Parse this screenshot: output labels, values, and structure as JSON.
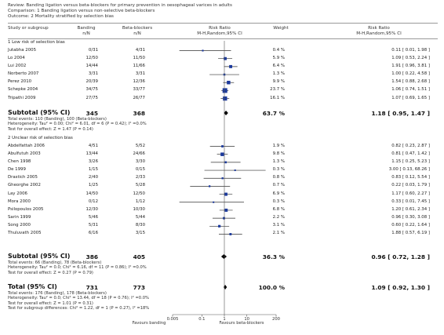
{
  "review": {
    "review": "Review:  Banding ligation versus beta-blockers for primary prevention in oesophageal varices in adults",
    "comparison": "Comparison:  1 Banding ligation versus non-selective beta-blockers",
    "outcome": "Outcome:  2 Mortality stratified by selection bias"
  },
  "columns": {
    "study": "Study or subgroup",
    "banding": "Banding",
    "banding_sub": "n/N",
    "bb": "Beta-blockers",
    "bb_sub": "n/N",
    "rr": "Risk Ratio",
    "rr_sub": "M-H,Random,95% CI",
    "weight": "Weight",
    "rr2": "Risk Ratio",
    "rr2_sub": "M-H,Random,95% CI"
  },
  "footer": {
    "favours_left": "Favours banding",
    "favours_right": "Favours beta-blockers"
  },
  "chart_data": {
    "type": "forest",
    "x_scale": "log",
    "xlim": [
      0.005,
      200
    ],
    "x_ticks": [
      "0.005",
      "0.1",
      "1",
      "10",
      "200"
    ],
    "x_tick_values": [
      0.005,
      0.1,
      1,
      10,
      200
    ],
    "subgroups": [
      {
        "title": "1 Low risk of selection bias",
        "studies": [
          {
            "name": "Jutabha 2005",
            "banding": "0/31",
            "bb": "4/31",
            "weight": "0.4 %",
            "ci_text": "0.11 [ 0.01, 1.98 ]",
            "rr": 0.11,
            "lo": 0.01,
            "hi": 1.98
          },
          {
            "name": "Lo 2004",
            "banding": "12/50",
            "bb": "11/50",
            "weight": "5.9 %",
            "ci_text": "1.09 [ 0.53, 2.24 ]",
            "rr": 1.09,
            "lo": 0.53,
            "hi": 2.24
          },
          {
            "name": "Lui 2002",
            "banding": "14/44",
            "bb": "11/66",
            "weight": "6.4 %",
            "ci_text": "1.91 [ 0.96, 3.81 ]",
            "rr": 1.91,
            "lo": 0.96,
            "hi": 3.81
          },
          {
            "name": "Norberto 2007",
            "banding": "3/31",
            "bb": "3/31",
            "weight": "1.3 %",
            "ci_text": "1.00 [ 0.22, 4.58 ]",
            "rr": 1.0,
            "lo": 0.22,
            "hi": 4.58
          },
          {
            "name": "Perez 2010",
            "banding": "20/39",
            "bb": "12/36",
            "weight": "9.9 %",
            "ci_text": "1.54 [ 0.88, 2.68 ]",
            "rr": 1.54,
            "lo": 0.88,
            "hi": 2.68
          },
          {
            "name": "Schepke 2004",
            "banding": "34/75",
            "bb": "33/77",
            "weight": "23.7 %",
            "ci_text": "1.06 [ 0.74, 1.51 ]",
            "rr": 1.06,
            "lo": 0.74,
            "hi": 1.51
          },
          {
            "name": "Tripathi 2009",
            "banding": "27/75",
            "bb": "26/77",
            "weight": "16.1 %",
            "ci_text": "1.07 [ 0.69, 1.65 ]",
            "rr": 1.07,
            "lo": 0.69,
            "hi": 1.65
          }
        ],
        "subtotal": {
          "label": "Subtotal (95% CI)",
          "banding": "345",
          "bb": "368",
          "weight": "63.7 %",
          "ci_text": "1.18 [ 0.95, 1.47 ]",
          "rr": 1.18,
          "lo": 0.95,
          "hi": 1.47
        },
        "notes": [
          "Total events: 110 (Banding), 100 (Beta-blockers)",
          "Heterogeneity: Tau² = 0.00; Chi² = 6.01, df = 6 (P = 0.42); I² =0.0%",
          "Test for overall effect: Z = 1.47 (P = 0.14)"
        ]
      },
      {
        "title": "2 Unclear risk of selection bias",
        "studies": [
          {
            "name": "Abdelfattah 2006",
            "banding": "4/51",
            "bb": "5/52",
            "weight": "1.9 %",
            "ci_text": "0.82 [ 0.23, 2.87 ]",
            "rr": 0.82,
            "lo": 0.23,
            "hi": 2.87
          },
          {
            "name": "Abulfutuh 2003",
            "banding": "13/44",
            "bb": "24/66",
            "weight": "9.8 %",
            "ci_text": "0.81 [ 0.47, 1.42 ]",
            "rr": 0.81,
            "lo": 0.47,
            "hi": 1.42
          },
          {
            "name": "Chen 1998",
            "banding": "3/26",
            "bb": "3/30",
            "weight": "1.3 %",
            "ci_text": "1.15 [ 0.25, 5.23 ]",
            "rr": 1.15,
            "lo": 0.25,
            "hi": 5.23
          },
          {
            "name": "De 1999",
            "banding": "1/15",
            "bb": "0/15",
            "weight": "0.3 %",
            "ci_text": "3.00 [ 0.13, 68.26 ]",
            "rr": 3.0,
            "lo": 0.13,
            "hi": 68.26
          },
          {
            "name": "Drastich 2005",
            "banding": "2/40",
            "bb": "2/33",
            "weight": "0.8 %",
            "ci_text": "0.83 [ 0.12, 5.54 ]",
            "rr": 0.83,
            "lo": 0.12,
            "hi": 5.54
          },
          {
            "name": "Gheorghe 2002",
            "banding": "1/25",
            "bb": "5/28",
            "weight": "0.7 %",
            "ci_text": "0.22 [ 0.03, 1.79 ]",
            "rr": 0.22,
            "lo": 0.03,
            "hi": 1.79
          },
          {
            "name": "Lay 2006",
            "banding": "14/50",
            "bb": "12/50",
            "weight": "6.9 %",
            "ci_text": "1.17 [ 0.60, 2.27 ]",
            "rr": 1.17,
            "lo": 0.6,
            "hi": 2.27
          },
          {
            "name": "Mora 2000",
            "banding": "0/12",
            "bb": "1/12",
            "weight": "0.3 %",
            "ci_text": "0.33 [ 0.01, 7.45 ]",
            "rr": 0.33,
            "lo": 0.01,
            "hi": 7.45
          },
          {
            "name": "Psilopoulos 2005",
            "banding": "12/30",
            "bb": "10/30",
            "weight": "6.8 %",
            "ci_text": "1.20 [ 0.61, 2.34 ]",
            "rr": 1.2,
            "lo": 0.61,
            "hi": 2.34
          },
          {
            "name": "Sarin 1999",
            "banding": "5/46",
            "bb": "5/44",
            "weight": "2.2 %",
            "ci_text": "0.96 [ 0.30, 3.08 ]",
            "rr": 0.96,
            "lo": 0.3,
            "hi": 3.08
          },
          {
            "name": "Song 2000",
            "banding": "5/31",
            "bb": "8/30",
            "weight": "3.1 %",
            "ci_text": "0.60 [ 0.22, 1.64 ]",
            "rr": 0.6,
            "lo": 0.22,
            "hi": 1.64
          },
          {
            "name": "Thuluvath 2005",
            "banding": "6/16",
            "bb": "3/15",
            "weight": "2.1 %",
            "ci_text": "1.88 [ 0.57, 6.19 ]",
            "rr": 1.88,
            "lo": 0.57,
            "hi": 6.19
          }
        ],
        "subtotal": {
          "label": "Subtotal (95% CI)",
          "banding": "386",
          "bb": "405",
          "weight": "36.3 %",
          "ci_text": "0.96 [ 0.72, 1.28 ]",
          "rr": 0.96,
          "lo": 0.72,
          "hi": 1.28
        },
        "notes": [
          "Total events: 66 (Banding), 78 (Beta-blockers)",
          "Heterogeneity: Tau² = 0.0; Chi² = 6.16, df = 11 (P = 0.86); I² =0.0%",
          "Test for overall effect: Z = 0.27 (P = 0.79)"
        ]
      }
    ],
    "total": {
      "label": "Total (95% CI)",
      "banding": "731",
      "bb": "773",
      "weight": "100.0 %",
      "ci_text": "1.09 [ 0.92, 1.30 ]",
      "rr": 1.09,
      "lo": 0.92,
      "hi": 1.3
    },
    "total_notes": [
      "Total events: 176 (Banding), 178 (Beta-blockers)",
      "Heterogeneity: Tau² = 0.0; Chi² = 13.44, df = 18 (P = 0.76); I² =0.0%",
      "Test for overall effect: Z = 1.01 (P = 0.31)",
      "Test for subgroup differences: Chi² = 1.22, df = 1 (P = 0.27), I² =18%"
    ],
    "colors": {
      "square": "#1c3a9c",
      "diamond": "#000000",
      "line": "#333333"
    }
  }
}
